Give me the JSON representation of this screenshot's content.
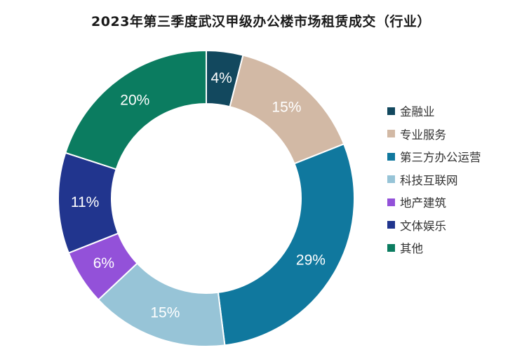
{
  "chart_data": {
    "type": "pie",
    "title": "2023年第三季度武汉甲级办公楼市场租赁成交（行业）",
    "categories": [
      "金融业",
      "专业服务",
      "第三方办公运营",
      "科技互联网",
      "地产建筑",
      "文体娱乐",
      "其他"
    ],
    "values": [
      4,
      15,
      29,
      15,
      6,
      11,
      20
    ],
    "value_labels": [
      "4%",
      "15%",
      "29%",
      "15%",
      "6%",
      "11%",
      "20%"
    ],
    "unit": "%",
    "donut": true,
    "start": "top (12 o'clock), clockwise",
    "colors": [
      "#12485e",
      "#d2b9a5",
      "#10789e",
      "#97c4d7",
      "#9351d9",
      "#21358e",
      "#0b7c60"
    ],
    "legend_position": "right",
    "grid": false
  }
}
